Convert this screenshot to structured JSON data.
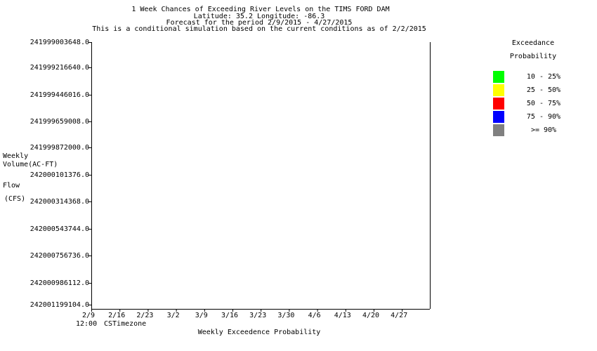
{
  "chart_data": {
    "type": "line",
    "title": [
      "1 Week Chances of Exceeding River Levels on the TIMS FORD DAM",
      "Latitude: 35.2    Longitude:  -86.3",
      "Forecast for the period 2/9/2015 - 4/27/2015",
      "This is a conditional simulation based on the current conditions as of 2/2/2015"
    ],
    "ylabel": [
      "Weekly",
      "Volume(AC-FT)",
      "Flow",
      "(CFS)"
    ],
    "xlabel": "Weekly Exceedence Probability",
    "x_note": [
      "12:00",
      "CSTimezone"
    ],
    "y_ticks": [
      "241999003648.0",
      "241999216640.0",
      "241999446016.0",
      "241999659008.0",
      "241999872000.0",
      "242000101376.0",
      "242000314368.0",
      "242000543744.0",
      "242000756736.0",
      "242000986112.0",
      "242001199104.0"
    ],
    "x_ticks": [
      "2/9",
      "2/16",
      "2/23",
      "3/2",
      "3/9",
      "3/16",
      "3/23",
      "3/30",
      "4/6",
      "4/13",
      "4/20",
      "4/27"
    ],
    "series": [],
    "grid": false,
    "legend": {
      "placement": "right",
      "title": [
        "Exceedance",
        "Probability"
      ],
      "entries": [
        {
          "label": "10 - 25%",
          "color": "#00ff00"
        },
        {
          "label": "25 - 50%",
          "color": "#ffff00"
        },
        {
          "label": "50 - 75%",
          "color": "#ff0000"
        },
        {
          "label": "75 - 90%",
          "color": "#0000ff"
        },
        {
          "label": ">= 90%",
          "color": "#808080"
        }
      ]
    }
  }
}
